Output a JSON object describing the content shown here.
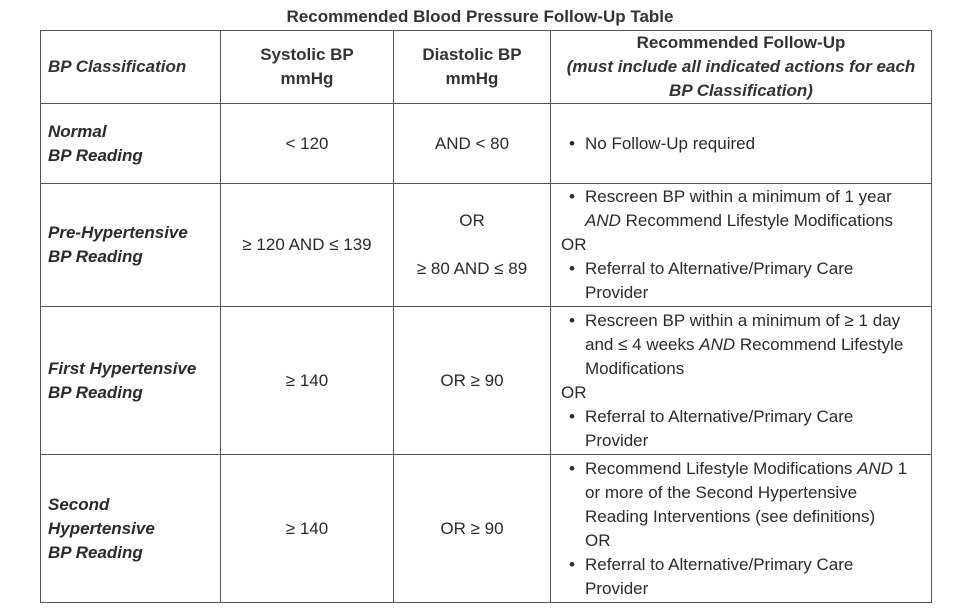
{
  "title": "Recommended Blood Pressure Follow-Up Table",
  "headers": {
    "classification": "BP Classification",
    "systolic_1": "Systolic BP",
    "systolic_2": "mmHg",
    "diastolic_1": "Diastolic BP",
    "diastolic_2": "mmHg",
    "followup_1": "Recommended Follow-Up",
    "followup_2": "(must include all indicated actions for each",
    "followup_3": "BP Classification)"
  },
  "rows": [
    {
      "class_1": "Normal",
      "class_2": "BP Reading",
      "systolic": "< 120",
      "diastolic": "AND < 80",
      "bullet_1": "No Follow-Up required"
    },
    {
      "class_1": "Pre-Hypertensive",
      "class_2": "BP Reading",
      "systolic": "≥ 120 AND ≤ 139",
      "diastolic_1": "OR",
      "diastolic_2": "≥ 80 AND ≤ 89",
      "bullet_1_a": "Rescreen BP within a minimum of 1 year",
      "bullet_1_b_and": "AND",
      "bullet_1_b": " Recommend Lifestyle Modifications",
      "or": "OR",
      "bullet_2_a": "Referral to Alternative/Primary Care",
      "bullet_2_b": "Provider"
    },
    {
      "class_1": "First Hypertensive",
      "class_2": "BP Reading",
      "systolic": "≥ 140",
      "diastolic": "OR ≥ 90",
      "bullet_1_a": "Rescreen BP within a minimum of ≥ 1 day",
      "bullet_1_b_pre": "and ≤ 4 weeks ",
      "bullet_1_b_and": "AND",
      "bullet_1_b_post": " Recommend Lifestyle",
      "bullet_1_c": "Modifications",
      "or": "OR",
      "bullet_2_a": "Referral to Alternative/Primary Care",
      "bullet_2_b": "Provider"
    },
    {
      "class_1": "Second",
      "class_2": "Hypertensive",
      "class_3": "BP Reading",
      "systolic": "≥ 140",
      "diastolic": "OR ≥ 90",
      "bullet_1_a_pre": "Recommend Lifestyle Modifications ",
      "bullet_1_a_and": "AND",
      "bullet_1_a_post": " 1",
      "bullet_1_b": "or more of the Second Hypertensive",
      "bullet_1_c": "Reading Interventions (see definitions)",
      "or": "OR",
      "bullet_2_a": "Referral to Alternative/Primary Care",
      "bullet_2_b": "Provider"
    }
  ]
}
